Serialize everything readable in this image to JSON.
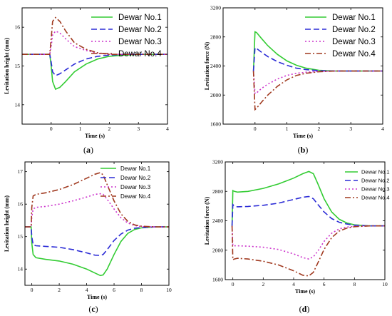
{
  "chart_data": [
    {
      "type": "line",
      "panel": "a",
      "caption": "(a)",
      "xlabel": "Time (s)",
      "ylabel": "Levitation height (mm)",
      "xlim": [
        -1,
        4
      ],
      "ylim": [
        13.5,
        16.5
      ],
      "xticks": [
        0,
        1,
        2,
        3,
        4
      ],
      "yticks": [
        14,
        15,
        16
      ],
      "legend_position": "top-right",
      "series": [
        {
          "name": "Dewar No.1",
          "color": "#33cc33",
          "dash": "solid",
          "x": [
            -1,
            -0.05,
            0,
            0.05,
            0.15,
            0.3,
            0.5,
            0.8,
            1.2,
            1.6,
            2.0,
            2.5,
            3,
            4
          ],
          "y": [
            15.3,
            15.3,
            15.0,
            14.6,
            14.4,
            14.45,
            14.6,
            14.85,
            15.05,
            15.18,
            15.25,
            15.28,
            15.3,
            15.3
          ]
        },
        {
          "name": "Dewar No.2",
          "color": "#2b2bd6",
          "dash": "8,4",
          "x": [
            -1,
            -0.05,
            0,
            0.05,
            0.15,
            0.3,
            0.5,
            0.8,
            1.2,
            1.6,
            2.0,
            2.5,
            3,
            4
          ],
          "y": [
            15.3,
            15.3,
            15.1,
            14.85,
            14.75,
            14.8,
            14.9,
            15.05,
            15.18,
            15.25,
            15.28,
            15.3,
            15.3,
            15.3
          ]
        },
        {
          "name": "Dewar No.3",
          "color": "#cc33cc",
          "dash": "2,3",
          "x": [
            -1,
            -0.05,
            0,
            0.05,
            0.15,
            0.3,
            0.5,
            0.8,
            1.2,
            1.6,
            2.0,
            2.5,
            3,
            4
          ],
          "y": [
            15.3,
            15.3,
            15.5,
            15.8,
            15.9,
            15.85,
            15.7,
            15.5,
            15.4,
            15.33,
            15.3,
            15.3,
            15.3,
            15.3
          ]
        },
        {
          "name": "Dewar No.4",
          "color": "#a0391f",
          "dash": "8,3,2,3",
          "x": [
            -1,
            -0.05,
            0,
            0.05,
            0.15,
            0.3,
            0.5,
            0.8,
            1.2,
            1.6,
            2.0,
            2.5,
            3,
            4
          ],
          "y": [
            15.3,
            15.3,
            15.7,
            16.15,
            16.25,
            16.15,
            15.9,
            15.6,
            15.43,
            15.34,
            15.3,
            15.3,
            15.3,
            15.3
          ]
        }
      ]
    },
    {
      "type": "line",
      "panel": "b",
      "caption": "(b)",
      "xlabel": "Time (s)",
      "ylabel": "Levitation force (N)",
      "xlim": [
        -1,
        4
      ],
      "ylim": [
        1600,
        3200
      ],
      "xticks": [
        0,
        1,
        2,
        3,
        4
      ],
      "yticks": [
        1600,
        2000,
        2400,
        2800,
        3200
      ],
      "legend_position": "top-right",
      "series": [
        {
          "name": "Dewar No.1",
          "color": "#33cc33",
          "dash": "solid",
          "x": [
            -0.05,
            0,
            0.05,
            0.2,
            0.4,
            0.7,
            1.0,
            1.3,
            1.6,
            2.0,
            2.5,
            3,
            4
          ],
          "y": [
            2330,
            2870,
            2860,
            2780,
            2680,
            2560,
            2470,
            2410,
            2370,
            2340,
            2330,
            2330,
            2330
          ]
        },
        {
          "name": "Dewar No.2",
          "color": "#2b2bd6",
          "dash": "8,4",
          "x": [
            -0.05,
            0,
            0.05,
            0.2,
            0.4,
            0.7,
            1.0,
            1.3,
            1.6,
            2.0,
            2.5,
            3,
            4
          ],
          "y": [
            2330,
            2650,
            2640,
            2590,
            2530,
            2460,
            2410,
            2370,
            2350,
            2335,
            2330,
            2330,
            2330
          ]
        },
        {
          "name": "Dewar No.3",
          "color": "#cc33cc",
          "dash": "2,3",
          "x": [
            -0.05,
            0,
            0.05,
            0.2,
            0.4,
            0.7,
            1.0,
            1.3,
            1.6,
            2.0,
            2.5,
            3,
            4
          ],
          "y": [
            2330,
            2020,
            2030,
            2090,
            2150,
            2220,
            2270,
            2300,
            2315,
            2325,
            2330,
            2330,
            2330
          ]
        },
        {
          "name": "Dewar No.4",
          "color": "#a0391f",
          "dash": "8,3,2,3",
          "x": [
            -0.05,
            0,
            0.05,
            0.2,
            0.4,
            0.7,
            1.0,
            1.3,
            1.6,
            2.0,
            2.5,
            3,
            4
          ],
          "y": [
            2330,
            1800,
            1820,
            1900,
            2000,
            2120,
            2210,
            2270,
            2300,
            2320,
            2330,
            2330,
            2330
          ]
        }
      ]
    },
    {
      "type": "line",
      "panel": "c",
      "caption": "(c)",
      "xlabel": "Time (s)",
      "ylabel": "Levitation height (mm)",
      "xlim": [
        -0.5,
        10
      ],
      "ylim": [
        13.5,
        17.3
      ],
      "xticks": [
        0,
        2,
        4,
        6,
        8,
        10
      ],
      "yticks": [
        14,
        15,
        16,
        17
      ],
      "legend_position": "top-right",
      "series": [
        {
          "name": "Dewar No.1",
          "color": "#33cc33",
          "dash": "solid",
          "x": [
            -0.5,
            -0.05,
            0,
            0.1,
            0.3,
            1,
            2,
            3,
            4,
            4.6,
            5.0,
            5.2,
            5.5,
            6,
            6.5,
            7,
            7.5,
            8,
            9,
            10
          ],
          "y": [
            15.3,
            15.3,
            14.8,
            14.45,
            14.35,
            14.3,
            14.25,
            14.15,
            14.0,
            13.88,
            13.8,
            13.82,
            14.0,
            14.45,
            14.85,
            15.1,
            15.22,
            15.27,
            15.3,
            15.3
          ]
        },
        {
          "name": "Dewar No.2",
          "color": "#2b2bd6",
          "dash": "8,4",
          "x": [
            -0.5,
            -0.05,
            0,
            0.1,
            0.3,
            1,
            2,
            3,
            4,
            4.6,
            5.0,
            5.2,
            5.5,
            6,
            6.5,
            7,
            7.5,
            8,
            9,
            10
          ],
          "y": [
            15.3,
            15.3,
            15.0,
            14.75,
            14.72,
            14.7,
            14.67,
            14.6,
            14.5,
            14.43,
            14.42,
            14.45,
            14.6,
            14.88,
            15.08,
            15.2,
            15.26,
            15.28,
            15.3,
            15.3
          ]
        },
        {
          "name": "Dewar No.3",
          "color": "#cc33cc",
          "dash": "2,3",
          "x": [
            -0.5,
            -0.05,
            0,
            0.1,
            0.3,
            1,
            2,
            3,
            4,
            4.6,
            5.0,
            5.2,
            5.5,
            6,
            6.5,
            7,
            7.5,
            8,
            9,
            10
          ],
          "y": [
            15.3,
            15.3,
            15.6,
            15.85,
            15.9,
            15.93,
            16.0,
            16.1,
            16.22,
            16.3,
            16.32,
            16.3,
            16.15,
            15.85,
            15.58,
            15.42,
            15.34,
            15.31,
            15.3,
            15.3
          ]
        },
        {
          "name": "Dewar No.4",
          "color": "#a0391f",
          "dash": "8,3,2,3",
          "x": [
            -0.5,
            -0.05,
            0,
            0.1,
            0.3,
            1,
            2,
            3,
            4,
            4.6,
            5.0,
            5.2,
            5.5,
            6,
            6.5,
            7,
            7.5,
            8,
            9,
            10
          ],
          "y": [
            15.3,
            15.3,
            15.9,
            16.25,
            16.3,
            16.35,
            16.45,
            16.6,
            16.8,
            16.92,
            16.97,
            16.9,
            16.6,
            16.1,
            15.7,
            15.47,
            15.36,
            15.32,
            15.3,
            15.3
          ]
        }
      ]
    },
    {
      "type": "line",
      "panel": "d",
      "caption": "(d)",
      "xlabel": "Time (s)",
      "ylabel": "Levitation force (N)",
      "xlim": [
        -0.5,
        10
      ],
      "ylim": [
        1600,
        3200
      ],
      "xticks": [
        0,
        2,
        4,
        6,
        8,
        10
      ],
      "yticks": [
        1600,
        2000,
        2400,
        2800,
        3200
      ],
      "legend_position": "top-right",
      "series": [
        {
          "name": "Dewar No.1",
          "color": "#33cc33",
          "dash": "solid",
          "x": [
            -0.05,
            0,
            0.1,
            0.3,
            1,
            2,
            3,
            4,
            4.6,
            5.0,
            5.3,
            5.6,
            6,
            6.5,
            7,
            7.5,
            8,
            9,
            10
          ],
          "y": [
            2330,
            2810,
            2800,
            2790,
            2800,
            2840,
            2900,
            2980,
            3040,
            3070,
            3040,
            2900,
            2700,
            2520,
            2420,
            2370,
            2345,
            2330,
            2330
          ]
        },
        {
          "name": "Dewar No.2",
          "color": "#2b2bd6",
          "dash": "8,4",
          "x": [
            -0.05,
            0,
            0.1,
            0.3,
            1,
            2,
            3,
            4,
            4.6,
            5.0,
            5.3,
            5.6,
            6,
            6.5,
            7,
            7.5,
            8,
            9,
            10
          ],
          "y": [
            2330,
            2620,
            2600,
            2590,
            2595,
            2610,
            2640,
            2690,
            2720,
            2730,
            2700,
            2620,
            2520,
            2430,
            2380,
            2355,
            2340,
            2330,
            2330
          ]
        },
        {
          "name": "Dewar No.3",
          "color": "#cc33cc",
          "dash": "2,3",
          "x": [
            -0.05,
            0,
            0.1,
            0.3,
            1,
            2,
            3,
            4,
            4.6,
            5.0,
            5.3,
            5.6,
            6,
            6.5,
            7,
            7.5,
            8,
            9,
            10
          ],
          "y": [
            2330,
            2060,
            2060,
            2060,
            2055,
            2040,
            2010,
            1950,
            1900,
            1880,
            1910,
            1990,
            2120,
            2230,
            2290,
            2315,
            2325,
            2330,
            2330
          ]
        },
        {
          "name": "Dewar No.4",
          "color": "#a0391f",
          "dash": "8,3,2,3",
          "x": [
            -0.05,
            0,
            0.1,
            0.3,
            1,
            2,
            3,
            4,
            4.6,
            5.0,
            5.3,
            5.6,
            6,
            6.5,
            7,
            7.5,
            8,
            9,
            10
          ],
          "y": [
            2330,
            1870,
            1880,
            1890,
            1880,
            1850,
            1800,
            1720,
            1660,
            1650,
            1700,
            1830,
            2010,
            2170,
            2260,
            2300,
            2320,
            2330,
            2330
          ]
        }
      ]
    }
  ]
}
